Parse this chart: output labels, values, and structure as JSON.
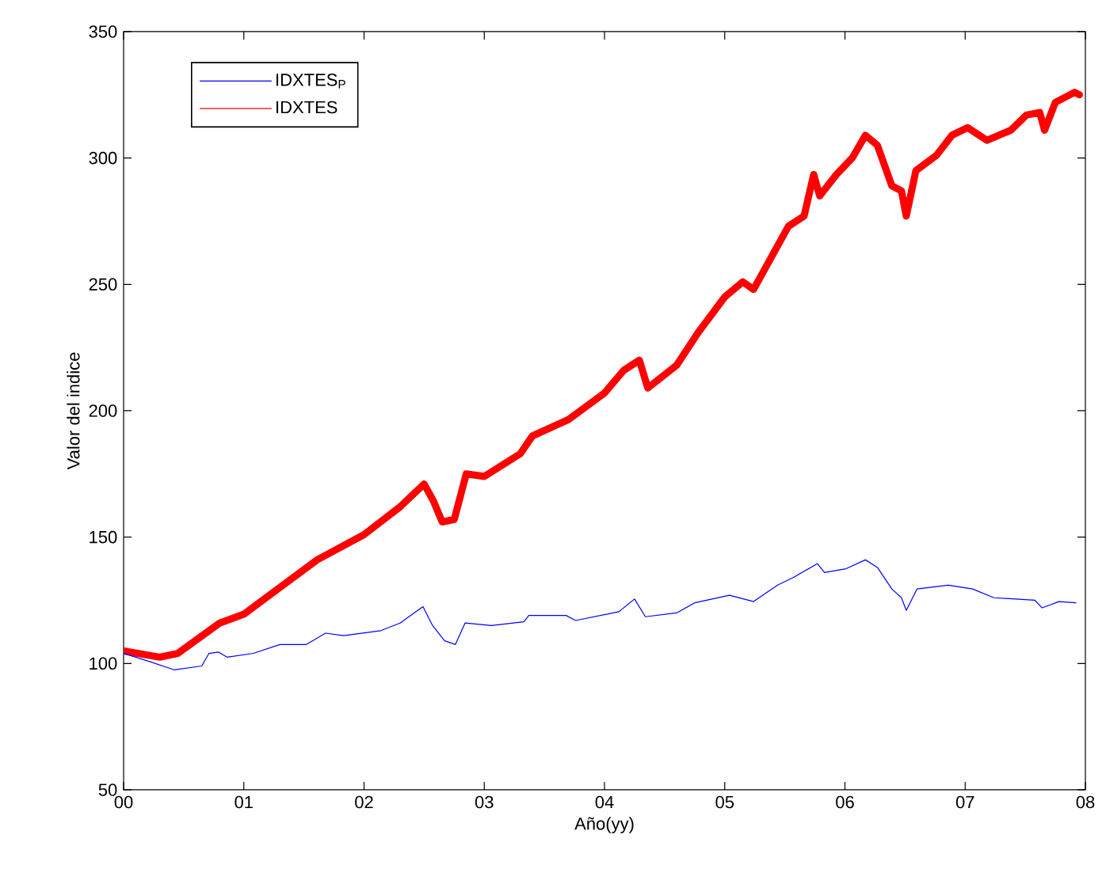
{
  "chart_data": {
    "type": "line",
    "xlabel": "Año(yy)",
    "ylabel": "Valor del indice",
    "xlim": [
      0,
      8
    ],
    "ylim": [
      50,
      350
    ],
    "xticks": [
      {
        "value": 0,
        "label": "00"
      },
      {
        "value": 1,
        "label": "01"
      },
      {
        "value": 2,
        "label": "02"
      },
      {
        "value": 3,
        "label": "03"
      },
      {
        "value": 4,
        "label": "04"
      },
      {
        "value": 5,
        "label": "05"
      },
      {
        "value": 6,
        "label": "06"
      },
      {
        "value": 7,
        "label": "07"
      },
      {
        "value": 8,
        "label": "08"
      }
    ],
    "yticks": [
      50,
      100,
      150,
      200,
      250,
      300,
      350
    ],
    "grid": false,
    "legend": "top left",
    "series": [
      {
        "name": "IDXTES$_{P}$",
        "color": "#0000ff",
        "x": [
          0,
          0.2,
          0.42,
          0.65,
          0.71,
          0.79,
          0.86,
          1.08,
          1.3,
          1.52,
          1.68,
          1.83,
          2.14,
          2.3,
          2.49,
          2.57,
          2.67,
          2.76,
          2.84,
          3.06,
          3.33,
          3.37,
          3.68,
          3.76,
          4.12,
          4.25,
          4.34,
          4.6,
          4.75,
          5.04,
          5.24,
          5.44,
          5.57,
          5.77,
          5.83,
          6.01,
          6.17,
          6.27,
          6.39,
          6.47,
          6.51,
          6.6,
          6.86,
          7.06,
          7.24,
          7.42,
          7.58,
          7.64,
          7.78,
          7.92
        ],
        "values": [
          104,
          101,
          97.5,
          99,
          104,
          104.5,
          102.5,
          104,
          107.5,
          107.5,
          112,
          111,
          113,
          116,
          122.5,
          115,
          109,
          107.5,
          116,
          115,
          116.5,
          119,
          119,
          117,
          120.5,
          125.5,
          118.5,
          120,
          124,
          127,
          124.5,
          131,
          134,
          139.5,
          136,
          137.5,
          141,
          138,
          129.5,
          126,
          121,
          129.5,
          131,
          129.5,
          126,
          125.5,
          125,
          122,
          124.5,
          124
        ]
      },
      {
        "name": "IDXTES",
        "color": "#ff0000",
        "x": [
          0,
          0.3,
          0.45,
          0.8,
          1.0,
          1.61,
          2.0,
          2.3,
          2.5,
          2.58,
          2.65,
          2.75,
          2.85,
          3.0,
          3.3,
          3.4,
          3.7,
          4.0,
          4.16,
          4.29,
          4.36,
          4.6,
          4.78,
          5.0,
          5.15,
          5.24,
          5.53,
          5.66,
          5.74,
          5.79,
          5.93,
          6.06,
          6.17,
          6.27,
          6.39,
          6.47,
          6.51,
          6.59,
          6.76,
          6.89,
          7.02,
          7.18,
          7.38,
          7.51,
          7.62,
          7.66,
          7.75,
          7.91,
          7.95
        ],
        "values": [
          105,
          102.5,
          104,
          116,
          119.5,
          141,
          151,
          162,
          171,
          164,
          156,
          157,
          175,
          174,
          183,
          190,
          196.5,
          207,
          216,
          220,
          209,
          218,
          231,
          245,
          251,
          248,
          273,
          277,
          293.5,
          285,
          293.5,
          300,
          309,
          305,
          289,
          287,
          277,
          295,
          301,
          309,
          312,
          307,
          311,
          317,
          318,
          311,
          322,
          326,
          325
        ]
      }
    ]
  }
}
